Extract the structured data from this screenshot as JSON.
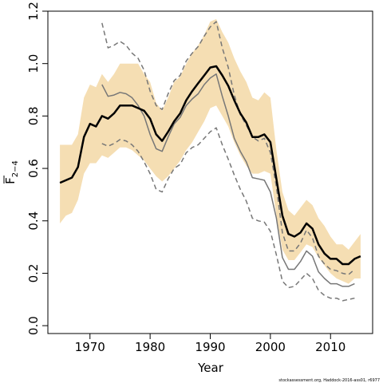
{
  "chart_data": {
    "type": "line",
    "xlabel": "Year",
    "ylabel_main": "F",
    "ylabel_subscript": "2−4",
    "xlim": [
      1963,
      2017
    ],
    "ylim": [
      -0.03,
      1.2
    ],
    "xticks": [
      1970,
      1980,
      1990,
      2000,
      2010
    ],
    "yticks": [
      0.0,
      0.2,
      0.4,
      0.6,
      0.8,
      1.0,
      1.2
    ],
    "ytick_labels": [
      "0.0",
      "0.2",
      "0.4",
      "0.6",
      "0.8",
      "1.0",
      "1.2"
    ],
    "grid": false,
    "colors": {
      "band": "#f5deb3",
      "main": "#000000",
      "retro": "#777777"
    },
    "band": {
      "x": [
        1965,
        1966,
        1967,
        1968,
        1969,
        1970,
        1971,
        1972,
        1973,
        1974,
        1975,
        1976,
        1977,
        1978,
        1979,
        1980,
        1981,
        1982,
        1983,
        1984,
        1985,
        1986,
        1987,
        1988,
        1989,
        1990,
        1991,
        1992,
        1993,
        1994,
        1995,
        1996,
        1997,
        1998,
        1999,
        2000,
        2001,
        2002,
        2003,
        2004,
        2005,
        2006,
        2007,
        2008,
        2009,
        2010,
        2011,
        2012,
        2013,
        2014,
        2015
      ],
      "upper": [
        0.69,
        0.69,
        0.69,
        0.73,
        0.87,
        0.92,
        0.91,
        0.96,
        0.93,
        0.96,
        1.0,
        1.0,
        1.0,
        1.0,
        0.96,
        0.93,
        0.85,
        0.82,
        0.87,
        0.93,
        0.95,
        1.0,
        1.04,
        1.07,
        1.11,
        1.16,
        1.17,
        1.12,
        1.08,
        1.02,
        0.97,
        0.93,
        0.87,
        0.86,
        0.89,
        0.87,
        0.67,
        0.51,
        0.44,
        0.42,
        0.45,
        0.48,
        0.46,
        0.41,
        0.38,
        0.34,
        0.31,
        0.31,
        0.29,
        0.32,
        0.35
      ],
      "lower": [
        0.39,
        0.42,
        0.43,
        0.48,
        0.58,
        0.62,
        0.62,
        0.65,
        0.64,
        0.66,
        0.68,
        0.68,
        0.67,
        0.65,
        0.63,
        0.6,
        0.57,
        0.55,
        0.57,
        0.6,
        0.63,
        0.67,
        0.7,
        0.74,
        0.78,
        0.83,
        0.84,
        0.8,
        0.76,
        0.7,
        0.65,
        0.61,
        0.58,
        0.58,
        0.59,
        0.58,
        0.42,
        0.29,
        0.25,
        0.25,
        0.28,
        0.31,
        0.3,
        0.26,
        0.23,
        0.2,
        0.18,
        0.17,
        0.16,
        0.18,
        0.18
      ]
    },
    "series": [
      {
        "role": "main",
        "style": "solid-bold",
        "x": [
          1965,
          1966,
          1967,
          1968,
          1969,
          1970,
          1971,
          1972,
          1973,
          1974,
          1975,
          1976,
          1977,
          1978,
          1979,
          1980,
          1981,
          1982,
          1983,
          1984,
          1985,
          1986,
          1987,
          1988,
          1989,
          1990,
          1991,
          1992,
          1993,
          1994,
          1995,
          1996,
          1997,
          1998,
          1999,
          2000,
          2001,
          2002,
          2003,
          2004,
          2005,
          2006,
          2007,
          2008,
          2009,
          2010,
          2011,
          2012,
          2013,
          2014,
          2015
        ],
        "y": [
          0.545,
          0.555,
          0.565,
          0.605,
          0.72,
          0.77,
          0.76,
          0.8,
          0.79,
          0.81,
          0.84,
          0.84,
          0.84,
          0.83,
          0.82,
          0.79,
          0.73,
          0.705,
          0.74,
          0.78,
          0.81,
          0.86,
          0.895,
          0.925,
          0.955,
          0.985,
          0.99,
          0.955,
          0.915,
          0.86,
          0.81,
          0.775,
          0.72,
          0.72,
          0.73,
          0.7,
          0.56,
          0.42,
          0.35,
          0.34,
          0.355,
          0.39,
          0.37,
          0.31,
          0.275,
          0.255,
          0.255,
          0.235,
          0.235,
          0.255,
          0.265
        ]
      },
      {
        "role": "retro",
        "style": "solid-grey",
        "x": [
          1972,
          1973,
          1974,
          1975,
          1976,
          1977,
          1978,
          1979,
          1980,
          1981,
          1982,
          1983,
          1984,
          1985,
          1986,
          1987,
          1988,
          1989,
          1990,
          1991,
          1992,
          1993,
          1994,
          1995,
          1996,
          1997,
          1998,
          1999,
          2000,
          2001,
          2002,
          2003,
          2004,
          2005,
          2006,
          2007,
          2008,
          2009,
          2010,
          2011,
          2012,
          2013,
          2014
        ],
        "y": [
          0.92,
          0.875,
          0.88,
          0.89,
          0.885,
          0.87,
          0.84,
          0.8,
          0.73,
          0.675,
          0.665,
          0.72,
          0.77,
          0.795,
          0.84,
          0.865,
          0.885,
          0.92,
          0.945,
          0.96,
          0.875,
          0.8,
          0.715,
          0.665,
          0.625,
          0.565,
          0.56,
          0.555,
          0.51,
          0.41,
          0.26,
          0.215,
          0.215,
          0.245,
          0.285,
          0.265,
          0.205,
          0.18,
          0.16,
          0.16,
          0.15,
          0.15,
          0.16
        ]
      },
      {
        "role": "retro-upper",
        "style": "dashed-grey",
        "x": [
          1972,
          1973,
          1974,
          1975,
          1976,
          1977,
          1978,
          1979,
          1980,
          1981,
          1982,
          1983,
          1984,
          1985,
          1986,
          1987,
          1988,
          1989,
          1990,
          1991,
          1992,
          1993,
          1994,
          1995,
          1996,
          1997,
          1998,
          1999,
          2000,
          2001,
          2002,
          2003,
          2004,
          2005,
          2006,
          2007,
          2008,
          2009,
          2010,
          2011,
          2012,
          2013,
          2014
        ],
        "y": [
          1.155,
          1.06,
          1.07,
          1.085,
          1.07,
          1.04,
          1.02,
          0.975,
          0.895,
          0.84,
          0.825,
          0.885,
          0.935,
          0.955,
          1.01,
          1.04,
          1.065,
          1.105,
          1.14,
          1.16,
          1.06,
          0.985,
          0.88,
          0.805,
          0.765,
          0.72,
          0.705,
          0.715,
          0.66,
          0.53,
          0.355,
          0.285,
          0.285,
          0.315,
          0.365,
          0.335,
          0.265,
          0.235,
          0.215,
          0.21,
          0.2,
          0.195,
          0.215
        ]
      },
      {
        "role": "retro-lower",
        "style": "dashed-grey",
        "x": [
          1972,
          1973,
          1974,
          1975,
          1976,
          1977,
          1978,
          1979,
          1980,
          1981,
          1982,
          1983,
          1984,
          1985,
          1986,
          1987,
          1988,
          1989,
          1990,
          1991,
          1992,
          1993,
          1994,
          1995,
          1996,
          1997,
          1998,
          1999,
          2000,
          2001,
          2002,
          2003,
          2004,
          2005,
          2006,
          2007,
          2008,
          2009,
          2010,
          2011,
          2012,
          2013,
          2014
        ],
        "y": [
          0.695,
          0.685,
          0.695,
          0.71,
          0.705,
          0.69,
          0.665,
          0.625,
          0.58,
          0.52,
          0.51,
          0.56,
          0.6,
          0.615,
          0.66,
          0.68,
          0.69,
          0.715,
          0.74,
          0.755,
          0.69,
          0.635,
          0.575,
          0.52,
          0.475,
          0.41,
          0.4,
          0.395,
          0.36,
          0.27,
          0.17,
          0.145,
          0.15,
          0.175,
          0.2,
          0.18,
          0.135,
          0.115,
          0.105,
          0.105,
          0.095,
          0.1,
          0.105
        ]
      }
    ]
  },
  "footer": "stockassessment.org, Haddock-2016-ass01, r6977"
}
